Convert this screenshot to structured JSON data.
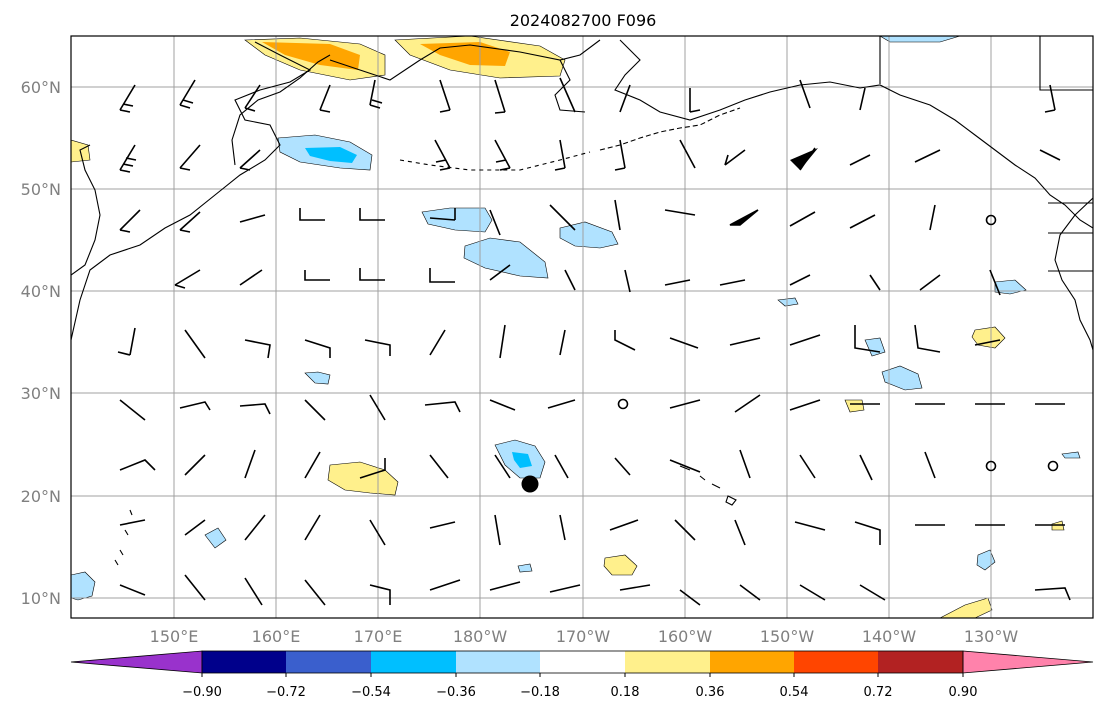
{
  "title": "2024082700 F096",
  "lat_labels": [
    "60°N",
    "50°N",
    "40°N",
    "30°N",
    "20°N",
    "10°N"
  ],
  "lon_labels": [
    "150°E",
    "160°E",
    "170°E",
    "180°W",
    "170°W",
    "160°W",
    "150°W",
    "140°W",
    "130°W"
  ],
  "colorbar": {
    "colors": [
      "#9932cc",
      "#00008b",
      "#3a5fcd",
      "#00bfff",
      "#b0e2ff",
      "#ffffff",
      "#fff08c",
      "#ffa500",
      "#ff4500",
      "#b22222",
      "#ff82ab"
    ],
    "tick_labels": [
      "−0.90",
      "−0.72",
      "−0.54",
      "−0.36",
      "−0.18",
      "0.18",
      "0.36",
      "0.54",
      "0.72",
      "0.90"
    ]
  },
  "colors": {
    "coast": "#000000",
    "grid": "#a0a0a0",
    "neg_light": "#b0e2ff",
    "neg_mid": "#00bfff",
    "pos_light": "#fff08c",
    "pos_mid": "#ffa500"
  },
  "markers": {
    "storm_center": "filled-circle",
    "calm": "open-circle"
  }
}
